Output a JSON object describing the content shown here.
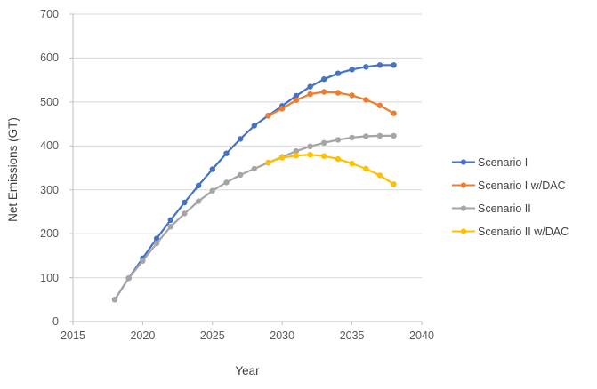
{
  "chart_data": {
    "type": "line",
    "title": "",
    "xlabel": "Year",
    "ylabel": "Net Emissions (GT)",
    "xlim": [
      2015,
      2040
    ],
    "ylim": [
      0,
      700
    ],
    "x_ticks": [
      2015,
      2020,
      2025,
      2030,
      2035,
      2040
    ],
    "y_ticks": [
      0,
      100,
      200,
      300,
      400,
      500,
      600,
      700
    ],
    "grid": "horizontal",
    "grid_color": "#D9D9D9",
    "axis_color": "#BFBFBF",
    "legend_position": "right",
    "series": [
      {
        "name": "Scenario I",
        "color": "#4472C4",
        "marker": "circle",
        "x": [
          2018,
          2019,
          2020,
          2021,
          2022,
          2023,
          2024,
          2025,
          2026,
          2027,
          2028,
          2029,
          2030,
          2031,
          2032,
          2033,
          2034,
          2035,
          2036,
          2037,
          2038
        ],
        "values": [
          50,
          99,
          144,
          189,
          231,
          271,
          310,
          347,
          383,
          416,
          446,
          469,
          491,
          514,
          535,
          552,
          565,
          574,
          580,
          584,
          584
        ]
      },
      {
        "name": "Scenario I w/DAC",
        "color": "#ED7D31",
        "marker": "circle",
        "x": [
          2029,
          2030,
          2031,
          2032,
          2033,
          2034,
          2035,
          2036,
          2037,
          2038
        ],
        "values": [
          469,
          485,
          504,
          518,
          523,
          521,
          515,
          505,
          492,
          474
        ]
      },
      {
        "name": "Scenario II",
        "color": "#A5A5A5",
        "marker": "circle",
        "x": [
          2018,
          2019,
          2020,
          2021,
          2022,
          2023,
          2024,
          2025,
          2026,
          2027,
          2028,
          2029,
          2030,
          2031,
          2032,
          2033,
          2034,
          2035,
          2036,
          2037,
          2038
        ],
        "values": [
          50,
          99,
          138,
          178,
          216,
          246,
          274,
          298,
          317,
          334,
          348,
          362,
          375,
          388,
          399,
          407,
          414,
          419,
          422,
          423,
          423
        ]
      },
      {
        "name": "Scenario II w/DAC",
        "color": "#FFC000",
        "marker": "circle",
        "x": [
          2029,
          2030,
          2031,
          2032,
          2033,
          2034,
          2035,
          2036,
          2037,
          2038
        ],
        "values": [
          362,
          373,
          378,
          380,
          377,
          370,
          360,
          348,
          333,
          313
        ]
      }
    ]
  }
}
